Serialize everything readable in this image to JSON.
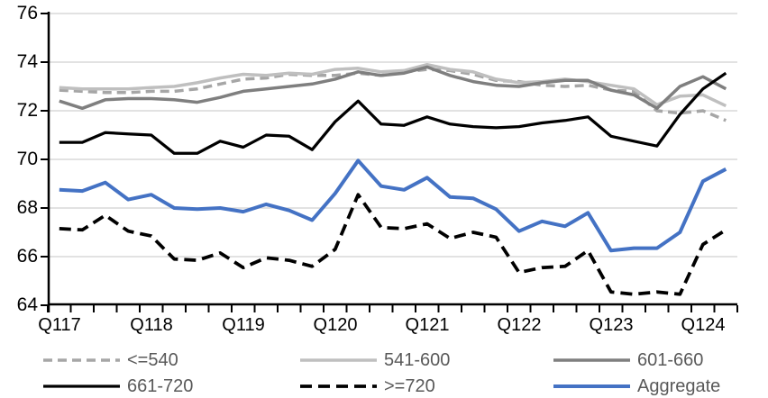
{
  "chart_data": {
    "type": "line",
    "title": "",
    "xlabel": "",
    "ylabel": "",
    "ylim": [
      64,
      76
    ],
    "y_ticks": [
      76,
      74,
      72,
      70,
      68,
      66,
      64
    ],
    "y_tick_labels": [
      "76",
      "74",
      "72",
      "70",
      "68",
      "66",
      "64"
    ],
    "x_tick_labels": [
      "Q117",
      "Q118",
      "Q119",
      "Q120",
      "Q121",
      "Q122",
      "Q123",
      "Q124"
    ],
    "categories": [
      "Q117",
      "Q217",
      "Q317",
      "Q417",
      "Q118",
      "Q218",
      "Q318",
      "Q418",
      "Q119",
      "Q219",
      "Q319",
      "Q419",
      "Q120",
      "Q220",
      "Q320",
      "Q420",
      "Q121",
      "Q221",
      "Q321",
      "Q421",
      "Q122",
      "Q222",
      "Q322",
      "Q422",
      "Q123",
      "Q223",
      "Q323",
      "Q423",
      "Q124",
      "Q224"
    ],
    "grid": "horizontal",
    "gridline_color": "#d9d9d9",
    "axis_color": "#000000",
    "legend_position": "bottom",
    "series": [
      {
        "name": "<=540",
        "color": "#a6a6a6",
        "style": "dashed",
        "dash": "10 6",
        "width": 3.5,
        "values": [
          72.85,
          72.8,
          72.75,
          72.75,
          72.8,
          72.8,
          72.9,
          73.1,
          73.3,
          73.35,
          73.5,
          73.45,
          73.45,
          73.55,
          73.45,
          73.6,
          73.7,
          73.65,
          73.5,
          73.25,
          73.2,
          73.05,
          73.0,
          73.05,
          72.85,
          72.8,
          72.0,
          71.9,
          72.0,
          71.6
        ]
      },
      {
        "name": "541-600",
        "color": "#bfbfbf",
        "style": "solid",
        "dash": "",
        "width": 3.5,
        "values": [
          72.95,
          72.9,
          72.9,
          72.9,
          72.95,
          73.0,
          73.15,
          73.35,
          73.5,
          73.45,
          73.55,
          73.5,
          73.7,
          73.75,
          73.6,
          73.65,
          73.9,
          73.7,
          73.6,
          73.3,
          73.15,
          73.2,
          73.3,
          73.2,
          73.05,
          72.9,
          72.25,
          72.6,
          72.65,
          72.2
        ]
      },
      {
        "name": "601-660",
        "color": "#7f7f7f",
        "style": "solid",
        "dash": "",
        "width": 3.5,
        "values": [
          72.4,
          72.1,
          72.45,
          72.5,
          72.5,
          72.45,
          72.35,
          72.55,
          72.8,
          72.9,
          73.0,
          73.1,
          73.3,
          73.6,
          73.45,
          73.55,
          73.8,
          73.45,
          73.2,
          73.05,
          73.0,
          73.15,
          73.25,
          73.25,
          72.85,
          72.65,
          72.1,
          73.0,
          73.4,
          72.9
        ]
      },
      {
        "name": "661-720",
        "color": "#000000",
        "style": "solid",
        "dash": "",
        "width": 3.25,
        "values": [
          70.7,
          70.7,
          71.1,
          71.05,
          71.0,
          70.25,
          70.25,
          70.75,
          70.5,
          71.0,
          70.95,
          70.4,
          71.55,
          72.4,
          71.45,
          71.4,
          71.75,
          71.45,
          71.35,
          71.3,
          71.35,
          71.5,
          71.6,
          71.75,
          70.95,
          70.75,
          70.55,
          71.85,
          72.9,
          73.55
        ]
      },
      {
        "name": ">=720",
        "color": "#000000",
        "style": "dashed",
        "dash": "13 7",
        "width": 3.75,
        "values": [
          67.15,
          67.1,
          67.7,
          67.05,
          66.85,
          65.9,
          65.85,
          66.15,
          65.55,
          65.95,
          65.85,
          65.6,
          66.3,
          68.55,
          67.2,
          67.15,
          67.35,
          66.75,
          67.0,
          66.8,
          65.35,
          65.55,
          65.6,
          66.25,
          64.55,
          64.45,
          64.55,
          64.45,
          66.5,
          67.1
        ]
      },
      {
        "name": "Aggregate",
        "color": "#4472c4",
        "style": "solid",
        "dash": "",
        "width": 4,
        "values": [
          68.75,
          68.7,
          69.05,
          68.35,
          68.55,
          68.0,
          67.95,
          68.0,
          67.85,
          68.15,
          67.9,
          67.5,
          68.6,
          69.95,
          68.9,
          68.75,
          69.25,
          68.45,
          68.4,
          67.95,
          67.05,
          67.45,
          67.25,
          67.8,
          66.25,
          66.35,
          66.35,
          67.0,
          69.1,
          69.6
        ]
      }
    ]
  }
}
